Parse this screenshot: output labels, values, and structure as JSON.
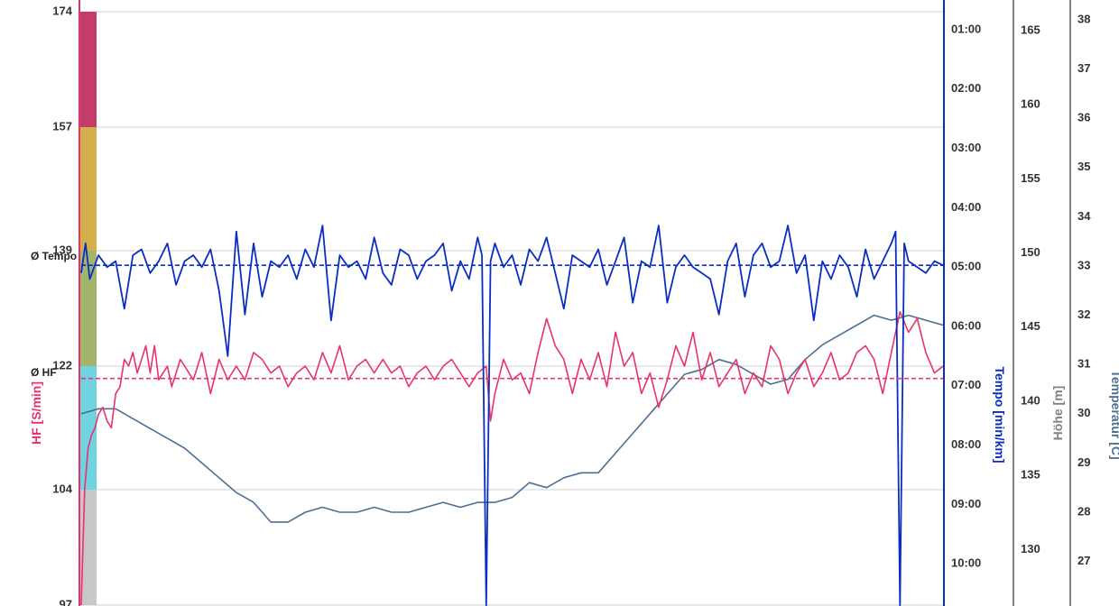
{
  "colors": {
    "hf": "#e8336b",
    "tempo": "#0a2ec2",
    "hoehe": "#808080",
    "temperatur": "#4d6f94",
    "grid": "#d0d0d0",
    "zone_colors": [
      "#c8c8c8",
      "#6fd3e0",
      "#a2b56b",
      "#d4b04a",
      "#c43d6a"
    ]
  },
  "labels": {
    "avg_tempo": "Ø Tempo",
    "avg_hf": "Ø HF"
  },
  "chart_data": {
    "type": "line",
    "xlabel": "",
    "grid": "horizontal",
    "axes": {
      "hf": {
        "title": "HF [S/min]",
        "ticks": [
          "174",
          "157",
          "139",
          "122",
          "104",
          "97"
        ],
        "range": [
          97,
          174
        ]
      },
      "tempo": {
        "title": "Tempo [min/km]",
        "ticks": [
          "01:00",
          "02:00",
          "03:00",
          "04:00",
          "05:00",
          "06:00",
          "07:00",
          "08:00",
          "09:00",
          "10:00"
        ],
        "range_min_per_km": [
          0.7,
          10.8
        ],
        "inverted": true
      },
      "hoehe": {
        "title": "Höhe [m]",
        "ticks": [
          "165",
          "160",
          "155",
          "150",
          "145",
          "140",
          "135",
          "130"
        ],
        "range": [
          127.6,
          166.1
        ]
      },
      "temperatur": {
        "title": "Temperatur [C]",
        "ticks": [
          "38",
          "37",
          "36",
          "35",
          "34",
          "33",
          "32",
          "31",
          "30",
          "29",
          "28",
          "27"
        ],
        "range": [
          26.15,
          38.3
        ]
      }
    },
    "hr_zones": [
      {
        "from": 97,
        "to": 104
      },
      {
        "from": 104,
        "to": 122
      },
      {
        "from": 122,
        "to": 139
      },
      {
        "from": 139,
        "to": 157
      },
      {
        "from": 157,
        "to": 174
      }
    ],
    "averages": {
      "tempo_min_per_km": 4.97,
      "hf": 120.2
    },
    "series": [
      {
        "name": "HF [S/min]",
        "axis": "hf",
        "x_frac": [
          0,
          0.004,
          0.008,
          0.012,
          0.016,
          0.02,
          0.025,
          0.03,
          0.035,
          0.04,
          0.045,
          0.05,
          0.055,
          0.06,
          0.065,
          0.07,
          0.075,
          0.08,
          0.085,
          0.09,
          0.095,
          0.1,
          0.105,
          0.11,
          0.115,
          0.12,
          0.13,
          0.14,
          0.15,
          0.16,
          0.17,
          0.18,
          0.19,
          0.2,
          0.21,
          0.22,
          0.23,
          0.24,
          0.25,
          0.26,
          0.27,
          0.28,
          0.29,
          0.3,
          0.31,
          0.32,
          0.33,
          0.34,
          0.35,
          0.36,
          0.37,
          0.38,
          0.39,
          0.4,
          0.41,
          0.42,
          0.43,
          0.44,
          0.45,
          0.46,
          0.47,
          0.475,
          0.48,
          0.49,
          0.5,
          0.51,
          0.52,
          0.53,
          0.54,
          0.55,
          0.56,
          0.57,
          0.58,
          0.59,
          0.6,
          0.61,
          0.62,
          0.63,
          0.64,
          0.65,
          0.66,
          0.67,
          0.68,
          0.69,
          0.7,
          0.71,
          0.72,
          0.73,
          0.74,
          0.75,
          0.76,
          0.77,
          0.78,
          0.79,
          0.8,
          0.81,
          0.82,
          0.83,
          0.84,
          0.85,
          0.86,
          0.87,
          0.88,
          0.89,
          0.9,
          0.91,
          0.92,
          0.93,
          0.94,
          0.95,
          0.96,
          0.97,
          0.98,
          0.99,
          1.0
        ],
        "values": [
          97,
          104,
          110,
          112,
          113,
          115,
          116,
          114,
          113,
          118,
          119,
          123,
          122,
          124,
          121,
          123,
          125,
          121,
          125,
          120,
          121,
          122,
          119,
          121,
          123,
          122,
          120,
          124,
          118,
          123,
          120,
          122,
          120,
          124,
          123,
          121,
          122,
          119,
          121,
          122,
          120,
          124,
          121,
          125,
          120,
          122,
          123,
          121,
          123,
          121,
          122,
          119,
          121,
          122,
          120,
          122,
          123,
          121,
          119,
          121,
          122,
          114,
          118,
          123,
          120,
          121,
          118,
          124,
          129,
          125,
          123,
          118,
          123,
          120,
          124,
          119,
          127,
          122,
          124,
          118,
          121,
          116,
          120,
          125,
          122,
          127,
          120,
          124,
          119,
          121,
          123,
          118,
          121,
          119,
          125,
          123,
          118,
          121,
          123,
          119,
          121,
          124,
          120,
          121,
          124,
          125,
          123,
          118,
          124,
          130,
          127,
          129,
          124,
          121,
          122
        ]
      },
      {
        "name": "Tempo [min/km]",
        "axis": "tempo",
        "x_frac": [
          0,
          0.005,
          0.01,
          0.02,
          0.03,
          0.04,
          0.05,
          0.06,
          0.07,
          0.08,
          0.09,
          0.1,
          0.11,
          0.12,
          0.13,
          0.14,
          0.15,
          0.16,
          0.17,
          0.18,
          0.19,
          0.2,
          0.21,
          0.22,
          0.23,
          0.24,
          0.25,
          0.26,
          0.27,
          0.28,
          0.29,
          0.3,
          0.31,
          0.32,
          0.33,
          0.34,
          0.35,
          0.36,
          0.37,
          0.38,
          0.39,
          0.4,
          0.41,
          0.42,
          0.43,
          0.44,
          0.45,
          0.46,
          0.465,
          0.47,
          0.475,
          0.48,
          0.49,
          0.5,
          0.51,
          0.52,
          0.53,
          0.54,
          0.55,
          0.56,
          0.57,
          0.58,
          0.59,
          0.6,
          0.61,
          0.62,
          0.63,
          0.64,
          0.65,
          0.66,
          0.67,
          0.68,
          0.69,
          0.7,
          0.71,
          0.72,
          0.73,
          0.74,
          0.75,
          0.76,
          0.77,
          0.78,
          0.79,
          0.8,
          0.81,
          0.82,
          0.83,
          0.84,
          0.85,
          0.86,
          0.87,
          0.88,
          0.89,
          0.9,
          0.91,
          0.92,
          0.93,
          0.94,
          0.945,
          0.95,
          0.955,
          0.96,
          0.97,
          0.98,
          0.99,
          1.0
        ],
        "values": [
          5.1,
          4.6,
          5.2,
          4.8,
          5.0,
          4.9,
          5.7,
          4.8,
          4.7,
          5.1,
          4.9,
          4.6,
          5.3,
          4.9,
          4.8,
          5.0,
          4.7,
          5.4,
          6.5,
          4.4,
          5.8,
          4.6,
          5.5,
          4.9,
          5.0,
          4.8,
          5.2,
          4.7,
          5.0,
          4.3,
          5.9,
          4.8,
          5.0,
          4.9,
          5.2,
          4.5,
          5.1,
          5.3,
          4.7,
          4.8,
          5.2,
          4.9,
          4.8,
          4.6,
          5.4,
          4.9,
          5.2,
          4.5,
          4.8,
          10.7,
          4.9,
          4.6,
          5.0,
          4.8,
          5.3,
          4.7,
          4.9,
          4.5,
          5.1,
          5.7,
          4.8,
          4.9,
          5.0,
          4.7,
          5.3,
          4.9,
          4.5,
          5.6,
          4.9,
          5.0,
          4.3,
          5.6,
          5.0,
          4.8,
          5.0,
          5.1,
          5.2,
          5.8,
          4.9,
          4.6,
          5.5,
          4.8,
          4.6,
          5.0,
          4.9,
          4.3,
          5.1,
          4.8,
          5.9,
          4.9,
          5.2,
          4.8,
          5.0,
          5.5,
          4.7,
          5.2,
          4.9,
          4.6,
          4.4,
          10.7,
          4.6,
          4.9,
          5.0,
          5.1,
          4.9,
          4.97
        ]
      },
      {
        "name": "Temperatur [C]",
        "axis": "temperatur",
        "x_frac": [
          0,
          0.02,
          0.04,
          0.06,
          0.08,
          0.1,
          0.12,
          0.14,
          0.16,
          0.18,
          0.2,
          0.22,
          0.24,
          0.26,
          0.28,
          0.3,
          0.32,
          0.34,
          0.36,
          0.38,
          0.4,
          0.42,
          0.44,
          0.46,
          0.48,
          0.5,
          0.52,
          0.54,
          0.56,
          0.58,
          0.6,
          0.62,
          0.64,
          0.66,
          0.68,
          0.7,
          0.72,
          0.74,
          0.76,
          0.78,
          0.8,
          0.82,
          0.84,
          0.86,
          0.88,
          0.9,
          0.92,
          0.94,
          0.96,
          0.98,
          1.0
        ],
        "values": [
          30.0,
          30.1,
          30.1,
          29.9,
          29.7,
          29.5,
          29.3,
          29.0,
          28.7,
          28.4,
          28.2,
          27.8,
          27.8,
          28.0,
          28.1,
          28.0,
          28.0,
          28.1,
          28.0,
          28.0,
          28.1,
          28.2,
          28.1,
          28.2,
          28.2,
          28.3,
          28.6,
          28.5,
          28.7,
          28.8,
          28.8,
          29.2,
          29.6,
          30.0,
          30.4,
          30.8,
          30.9,
          31.1,
          31.0,
          30.8,
          30.6,
          30.7,
          31.1,
          31.4,
          31.6,
          31.8,
          32.0,
          31.9,
          32.0,
          31.9,
          31.8
        ]
      }
    ]
  }
}
